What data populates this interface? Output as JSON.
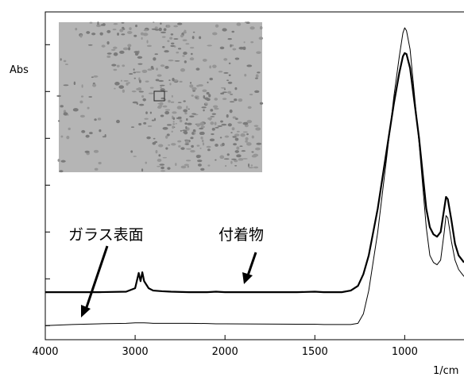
{
  "chart_data": {
    "type": "line",
    "y_label": "Abs",
    "x_label": "1/cm",
    "xlim": [
      4000,
      670
    ],
    "xticks": [
      4000,
      3000,
      2000,
      1500,
      1000
    ],
    "x_expand_below": 2000,
    "x_expand_factor": 2,
    "ylim": [
      -0.06,
      1.34
    ],
    "yticks": [
      0,
      0.2,
      0.4,
      0.6,
      0.8,
      1.0,
      1.2
    ],
    "x": [
      4000,
      3700,
      3400,
      3100,
      3000,
      2960,
      2940,
      2920,
      2900,
      2850,
      2800,
      2700,
      2600,
      2400,
      2200,
      2100,
      2000,
      1800,
      1600,
      1500,
      1450,
      1400,
      1350,
      1300,
      1260,
      1230,
      1200,
      1150,
      1100,
      1060,
      1030,
      1010,
      1000,
      990,
      970,
      950,
      920,
      900,
      880,
      860,
      840,
      820,
      800,
      780,
      770,
      760,
      740,
      720,
      700,
      680,
      670
    ],
    "series": [
      {
        "name": "付着物",
        "color": "#000000",
        "width": 2.2,
        "values": [
          0.143,
          0.143,
          0.143,
          0.145,
          0.16,
          0.225,
          0.19,
          0.228,
          0.19,
          0.16,
          0.15,
          0.147,
          0.145,
          0.143,
          0.143,
          0.145,
          0.143,
          0.143,
          0.143,
          0.145,
          0.143,
          0.143,
          0.143,
          0.15,
          0.17,
          0.22,
          0.3,
          0.5,
          0.75,
          0.95,
          1.08,
          1.15,
          1.164,
          1.16,
          1.1,
          0.98,
          0.8,
          0.65,
          0.5,
          0.42,
          0.39,
          0.38,
          0.4,
          0.5,
          0.55,
          0.54,
          0.45,
          0.35,
          0.3,
          0.28,
          0.27
        ]
      },
      {
        "name": "ガラス表面",
        "color": "#000000",
        "width": 1,
        "values": [
          0.0,
          0.005,
          0.008,
          0.01,
          0.012,
          0.012,
          0.012,
          0.012,
          0.012,
          0.011,
          0.01,
          0.01,
          0.01,
          0.01,
          0.009,
          0.008,
          0.008,
          0.007,
          0.006,
          0.006,
          0.005,
          0.005,
          0.005,
          0.005,
          0.01,
          0.05,
          0.15,
          0.4,
          0.72,
          0.98,
          1.15,
          1.25,
          1.272,
          1.26,
          1.18,
          1.02,
          0.78,
          0.6,
          0.42,
          0.3,
          0.27,
          0.26,
          0.28,
          0.4,
          0.47,
          0.46,
          0.36,
          0.28,
          0.24,
          0.22,
          0.21
        ]
      }
    ]
  }
}
